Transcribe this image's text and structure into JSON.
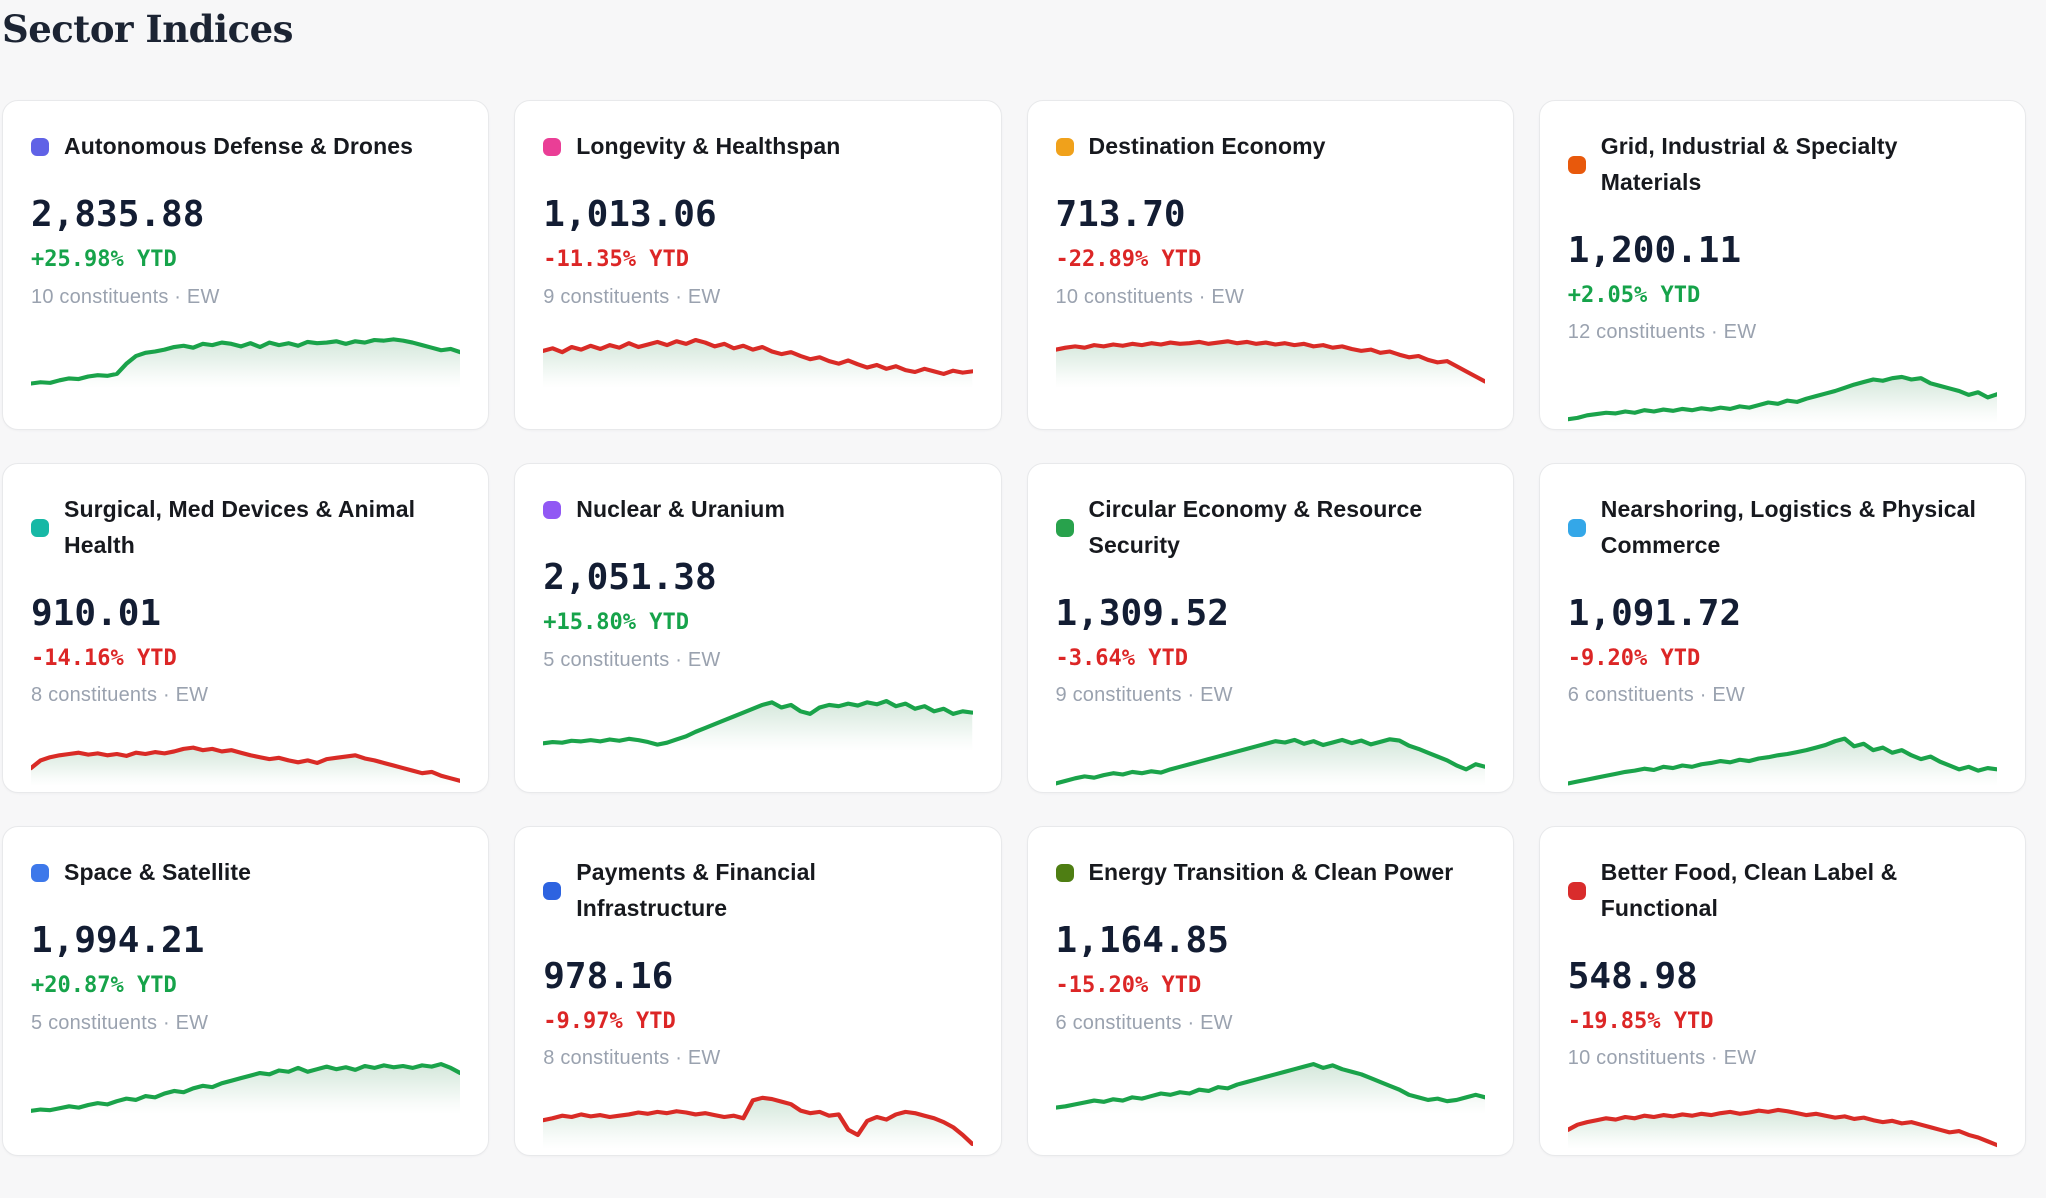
{
  "page": {
    "title": "Sector Indices",
    "background": "#f7f7f8"
  },
  "colors": {
    "positive_text": "#16a34a",
    "negative_text": "#dc2626",
    "line_green": "#1aa34a",
    "line_red": "#d92b26",
    "fill_tint": "#52a06e",
    "muted_text": "#9aa2af",
    "value_text": "#131d33",
    "card_border": "#e8e9eb"
  },
  "cards": [
    {
      "name": "Autonomous Defense & Drones",
      "dot_color": "#6062e6",
      "value": "2,835.88",
      "ytd": "+25.98% YTD",
      "direction": "up",
      "constituents": "10 constituents · EW",
      "line": "green",
      "sparkline": [
        93,
        91,
        92,
        88,
        85,
        86,
        82,
        80,
        81,
        78,
        62,
        50,
        45,
        43,
        40,
        36,
        34,
        37,
        31,
        33,
        29,
        31,
        35,
        30,
        36,
        29,
        33,
        30,
        34,
        28,
        30,
        29,
        27,
        31,
        27,
        29,
        25,
        26,
        24,
        26,
        29,
        33,
        37,
        41,
        39,
        44
      ]
    },
    {
      "name": "Longevity & Healthspan",
      "dot_color": "#ea3e96",
      "value": "1,013.06",
      "ytd": "-11.35% YTD",
      "direction": "down",
      "constituents": "9 constituents · EW",
      "line": "red",
      "sparkline": [
        42,
        38,
        44,
        36,
        40,
        34,
        39,
        33,
        37,
        30,
        36,
        32,
        28,
        33,
        27,
        31,
        25,
        29,
        35,
        31,
        38,
        34,
        40,
        36,
        43,
        47,
        44,
        50,
        55,
        52,
        58,
        62,
        57,
        63,
        68,
        64,
        70,
        66,
        72,
        75,
        70,
        74,
        78,
        73,
        76,
        74
      ]
    },
    {
      "name": "Destination Economy",
      "dot_color": "#f0a11b",
      "value": "713.70",
      "ytd": "-22.89% YTD",
      "direction": "down",
      "constituents": "10 constituents · EW",
      "line": "red",
      "sparkline": [
        40,
        37,
        35,
        37,
        33,
        35,
        32,
        34,
        31,
        33,
        30,
        32,
        29,
        31,
        30,
        28,
        31,
        29,
        27,
        30,
        28,
        31,
        29,
        32,
        30,
        33,
        31,
        35,
        33,
        37,
        35,
        39,
        42,
        40,
        45,
        43,
        48,
        52,
        50,
        56,
        60,
        58,
        66,
        74,
        82,
        90
      ]
    },
    {
      "name": "Grid, Industrial & Specialty Materials",
      "dot_color": "#e8590c",
      "value": "1,200.11",
      "ytd": "+2.05% YTD",
      "direction": "up",
      "constituents": "12 constituents · EW",
      "line": "green",
      "sparkline": [
        94,
        92,
        88,
        86,
        84,
        85,
        82,
        84,
        80,
        82,
        79,
        81,
        78,
        80,
        77,
        79,
        76,
        78,
        74,
        76,
        72,
        68,
        70,
        65,
        67,
        62,
        58,
        54,
        50,
        45,
        40,
        36,
        32,
        34,
        30,
        28,
        32,
        30,
        38,
        42,
        46,
        50,
        56,
        52,
        60,
        55
      ]
    },
    {
      "name": "Surgical, Med Devices & Animal Health",
      "dot_color": "#17b8a5",
      "value": "910.01",
      "ytd": "-14.16% YTD",
      "direction": "down",
      "constituents": "8 constituents · EW",
      "line": "red",
      "sparkline": [
        72,
        60,
        55,
        52,
        50,
        48,
        51,
        49,
        52,
        50,
        53,
        48,
        50,
        47,
        49,
        46,
        42,
        40,
        44,
        42,
        46,
        44,
        48,
        52,
        55,
        58,
        56,
        60,
        63,
        60,
        64,
        58,
        56,
        54,
        52,
        57,
        60,
        64,
        68,
        72,
        76,
        80,
        78,
        84,
        88,
        92
      ]
    },
    {
      "name": "Nuclear & Uranium",
      "dot_color": "#9158f4",
      "value": "2,051.38",
      "ytd": "+15.80% YTD",
      "direction": "up",
      "constituents": "5 constituents · EW",
      "line": "green",
      "sparkline": [
        88,
        86,
        87,
        84,
        85,
        83,
        85,
        82,
        84,
        81,
        83,
        86,
        90,
        87,
        82,
        77,
        70,
        64,
        58,
        52,
        46,
        40,
        34,
        28,
        24,
        32,
        28,
        38,
        42,
        32,
        28,
        30,
        26,
        29,
        24,
        27,
        22,
        30,
        26,
        34,
        30,
        38,
        34,
        42,
        38,
        40
      ]
    },
    {
      "name": "Circular Economy & Resource Security",
      "dot_color": "#28a24c",
      "value": "1,309.52",
      "ytd": "-3.64% YTD",
      "direction": "down",
      "constituents": "9 constituents · EW",
      "line": "green",
      "sparkline": [
        96,
        92,
        88,
        85,
        87,
        83,
        80,
        82,
        78,
        80,
        77,
        79,
        74,
        70,
        66,
        62,
        58,
        54,
        50,
        46,
        42,
        38,
        34,
        30,
        32,
        28,
        34,
        30,
        36,
        32,
        28,
        33,
        29,
        35,
        31,
        27,
        29,
        37,
        42,
        48,
        54,
        60,
        68,
        74,
        66,
        70
      ]
    },
    {
      "name": "Nearshoring, Logistics & Physical Commerce",
      "dot_color": "#34a7e8",
      "value": "1,091.72",
      "ytd": "-9.20% YTD",
      "direction": "down",
      "constituents": "6 constituents · EW",
      "line": "green",
      "sparkline": [
        96,
        93,
        90,
        87,
        84,
        81,
        78,
        76,
        73,
        75,
        70,
        72,
        68,
        70,
        66,
        64,
        61,
        63,
        59,
        61,
        57,
        55,
        52,
        50,
        47,
        44,
        40,
        36,
        30,
        26,
        38,
        34,
        44,
        40,
        48,
        44,
        52,
        58,
        54,
        62,
        68,
        74,
        70,
        76,
        72,
        74
      ]
    },
    {
      "name": "Space & Satellite",
      "dot_color": "#3d78ea",
      "value": "1,994.21",
      "ytd": "+20.87% YTD",
      "direction": "up",
      "constituents": "5 constituents · EW",
      "line": "green",
      "sparkline": [
        95,
        93,
        94,
        91,
        88,
        90,
        86,
        83,
        85,
        80,
        76,
        78,
        72,
        74,
        68,
        64,
        66,
        60,
        56,
        58,
        52,
        48,
        44,
        40,
        36,
        38,
        32,
        34,
        28,
        34,
        30,
        26,
        30,
        27,
        31,
        25,
        28,
        24,
        27,
        25,
        28,
        24,
        26,
        22,
        28,
        36
      ]
    },
    {
      "name": "Payments & Financial Infrastructure",
      "dot_color": "#2d63e0",
      "value": "978.16",
      "ytd": "-9.97% YTD",
      "direction": "down",
      "constituents": "8 constituents · EW",
      "line": "red",
      "sparkline": [
        55,
        52,
        48,
        50,
        46,
        49,
        47,
        50,
        48,
        46,
        43,
        45,
        42,
        44,
        41,
        43,
        46,
        44,
        47,
        50,
        48,
        52,
        24,
        20,
        22,
        26,
        30,
        40,
        44,
        42,
        48,
        46,
        70,
        78,
        56,
        50,
        54,
        46,
        42,
        44,
        48,
        52,
        58,
        66,
        78,
        92
      ]
    },
    {
      "name": "Energy Transition & Clean Power",
      "dot_color": "#4e7e13",
      "value": "1,164.85",
      "ytd": "-15.20% YTD",
      "direction": "down",
      "constituents": "6 constituents · EW",
      "line": "green",
      "sparkline": [
        90,
        88,
        85,
        82,
        79,
        81,
        77,
        79,
        74,
        76,
        72,
        68,
        70,
        66,
        68,
        62,
        64,
        58,
        60,
        54,
        50,
        46,
        42,
        38,
        34,
        30,
        26,
        22,
        28,
        24,
        30,
        34,
        38,
        44,
        50,
        56,
        62,
        70,
        74,
        78,
        76,
        80,
        78,
        74,
        70,
        74
      ]
    },
    {
      "name": "Better Food, Clean Label & Functional",
      "dot_color": "#d92c2c",
      "value": "548.98",
      "ytd": "-19.85% YTD",
      "direction": "down",
      "constituents": "10 constituents · EW",
      "line": "red",
      "sparkline": [
        70,
        62,
        58,
        55,
        52,
        54,
        50,
        52,
        48,
        50,
        47,
        49,
        46,
        48,
        45,
        47,
        44,
        42,
        45,
        43,
        40,
        42,
        39,
        41,
        44,
        47,
        45,
        48,
        51,
        49,
        53,
        51,
        55,
        58,
        56,
        60,
        58,
        62,
        66,
        70,
        74,
        72,
        78,
        82,
        88,
        94
      ]
    }
  ]
}
